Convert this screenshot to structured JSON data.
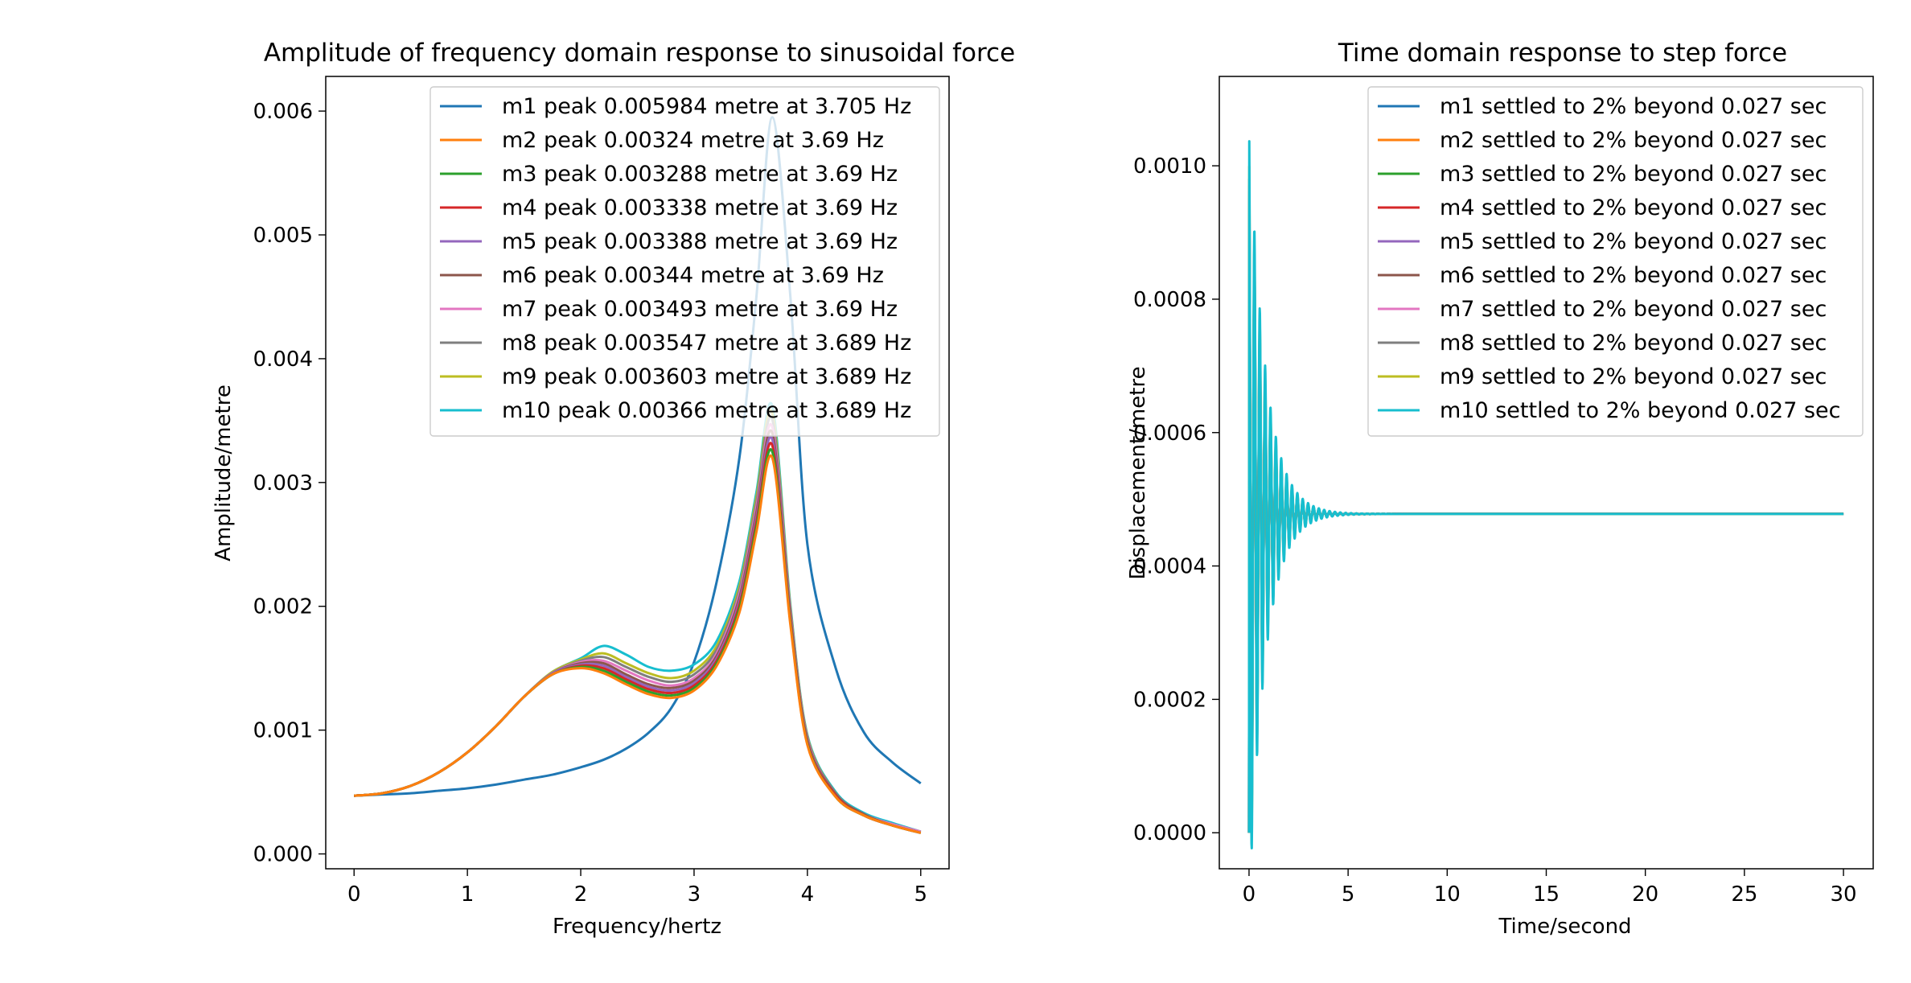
{
  "chart_data": [
    {
      "type": "line",
      "title": "Amplitude of frequency domain response to sinusoidal force",
      "xlabel": "Frequency/hertz",
      "ylabel": "Amplitude/metre",
      "xlim": [
        -0.25,
        5.25
      ],
      "ylim": [
        -0.00012,
        0.00628
      ],
      "xticks": [
        "0",
        "1",
        "2",
        "3",
        "4",
        "5"
      ],
      "yticks": [
        "0.000",
        "0.001",
        "0.002",
        "0.003",
        "0.004",
        "0.005",
        "0.006"
      ],
      "legend_position": "upper right",
      "grid": false,
      "x": [
        0,
        0.25,
        0.5,
        0.75,
        1.0,
        1.25,
        1.5,
        1.75,
        2.0,
        2.2,
        2.4,
        2.6,
        2.8,
        3.0,
        3.2,
        3.4,
        3.55,
        3.69,
        3.85,
        4.0,
        4.25,
        4.5,
        4.75,
        5.0
      ],
      "series": [
        {
          "name": "m1 peak 0.005984 metre at 3.705 Hz",
          "color": "#1f77b4",
          "values": [
            0.00047,
            0.00048,
            0.00049,
            0.00051,
            0.00053,
            0.00056,
            0.0006,
            0.00064,
            0.0007,
            0.00076,
            0.00085,
            0.00098,
            0.00118,
            0.00155,
            0.0022,
            0.0032,
            0.0045,
            0.00595,
            0.0045,
            0.0025,
            0.0015,
            0.00098,
            0.00074,
            0.00057
          ]
        },
        {
          "name": "m2 peak 0.00324 metre at 3.69 Hz",
          "color": "#ff7f0e",
          "values": [
            0.00047,
            0.00049,
            0.00055,
            0.00066,
            0.00082,
            0.00103,
            0.00127,
            0.00145,
            0.0015,
            0.00146,
            0.00137,
            0.00129,
            0.00126,
            0.00132,
            0.00152,
            0.00195,
            0.0026,
            0.0032,
            0.00185,
            0.00088,
            0.00046,
            0.00031,
            0.00023,
            0.00017
          ]
        },
        {
          "name": "m3 peak 0.003288 metre at 3.69 Hz",
          "color": "#2ca02c",
          "values": [
            0.00047,
            0.00049,
            0.00055,
            0.00066,
            0.00082,
            0.00103,
            0.00127,
            0.00145,
            0.00151,
            0.00148,
            0.00139,
            0.00131,
            0.00128,
            0.00134,
            0.00154,
            0.00198,
            0.00264,
            0.00325,
            0.00187,
            0.00089,
            0.00046,
            0.00031,
            0.00023,
            0.00017
          ]
        },
        {
          "name": "m4 peak 0.003338 metre at 3.69 Hz",
          "color": "#d62728",
          "values": [
            0.00047,
            0.00049,
            0.00055,
            0.00066,
            0.00082,
            0.00103,
            0.00127,
            0.00145,
            0.00152,
            0.0015,
            0.00141,
            0.00133,
            0.0013,
            0.00136,
            0.00156,
            0.00201,
            0.00268,
            0.0033,
            0.00189,
            0.0009,
            0.00047,
            0.00031,
            0.00023,
            0.00017
          ]
        },
        {
          "name": "m5 peak 0.003388 metre at 3.69 Hz",
          "color": "#9467bd",
          "values": [
            0.00047,
            0.00049,
            0.00055,
            0.00066,
            0.00082,
            0.00103,
            0.00127,
            0.00146,
            0.00153,
            0.00152,
            0.00143,
            0.00135,
            0.00132,
            0.00138,
            0.00158,
            0.00204,
            0.00272,
            0.00335,
            0.00191,
            0.00091,
            0.00047,
            0.00031,
            0.00023,
            0.00017
          ]
        },
        {
          "name": "m6 peak 0.00344 metre at 3.69 Hz",
          "color": "#8c564b",
          "values": [
            0.00047,
            0.00049,
            0.00055,
            0.00066,
            0.00082,
            0.00103,
            0.00127,
            0.00146,
            0.00154,
            0.00154,
            0.00145,
            0.00137,
            0.00134,
            0.0014,
            0.0016,
            0.00207,
            0.00276,
            0.0034,
            0.00193,
            0.00092,
            0.00048,
            0.00032,
            0.00023,
            0.00017
          ]
        },
        {
          "name": "m7 peak 0.003493 metre at 3.69 Hz",
          "color": "#e377c2",
          "values": [
            0.00047,
            0.00049,
            0.00055,
            0.00066,
            0.00082,
            0.00103,
            0.00127,
            0.00146,
            0.00155,
            0.00156,
            0.00148,
            0.0014,
            0.00136,
            0.00142,
            0.00162,
            0.0021,
            0.0028,
            0.00345,
            0.00195,
            0.00093,
            0.00048,
            0.00032,
            0.00024,
            0.00018
          ]
        },
        {
          "name": "m8 peak 0.003547 metre at 3.689 Hz",
          "color": "#7f7f7f",
          "values": [
            0.00047,
            0.00049,
            0.00055,
            0.00066,
            0.00082,
            0.00103,
            0.00127,
            0.00146,
            0.00156,
            0.00159,
            0.00151,
            0.00143,
            0.00139,
            0.00145,
            0.00165,
            0.00213,
            0.00284,
            0.00351,
            0.00197,
            0.00094,
            0.00049,
            0.00032,
            0.00024,
            0.00018
          ]
        },
        {
          "name": "m9 peak 0.003603 metre at 3.689 Hz",
          "color": "#bcbd22",
          "values": [
            0.00047,
            0.00049,
            0.00055,
            0.00066,
            0.00082,
            0.00103,
            0.00127,
            0.00147,
            0.00157,
            0.00162,
            0.00154,
            0.00146,
            0.00142,
            0.00148,
            0.00168,
            0.00216,
            0.00288,
            0.00356,
            0.00199,
            0.00095,
            0.00049,
            0.00032,
            0.00024,
            0.00018
          ]
        },
        {
          "name": "m10 peak 0.00366 metre at 3.689 Hz",
          "color": "#17becf",
          "values": [
            0.00047,
            0.00049,
            0.00055,
            0.00066,
            0.00082,
            0.00103,
            0.00127,
            0.00147,
            0.00158,
            0.00168,
            0.00161,
            0.00151,
            0.00148,
            0.00153,
            0.00172,
            0.0022,
            0.00292,
            0.00362,
            0.00201,
            0.00096,
            0.0005,
            0.00033,
            0.00025,
            0.00018
          ]
        }
      ]
    },
    {
      "type": "line",
      "title": "Time domain response to step force",
      "xlabel": "Time/second",
      "ylabel": "Displacement/metre",
      "xlim": [
        -1.5,
        31.5
      ],
      "ylim": [
        -5.4e-05,
        0.001134
      ],
      "xticks": [
        "0",
        "5",
        "10",
        "15",
        "20",
        "25",
        "30"
      ],
      "yticks": [
        "0.0000",
        "0.0002",
        "0.0004",
        "0.0006",
        "0.0008",
        "0.0010"
      ],
      "legend_position": "upper right",
      "grid": false,
      "final_value": 0.000478,
      "series": [
        {
          "name": "m1 settled to 2% beyond 0.027 sec",
          "color": "#1f77b4",
          "peak": 0.00092,
          "decay": 0.55,
          "freq": 3.705
        },
        {
          "name": "m2 settled to 2% beyond 0.027 sec",
          "color": "#ff7f0e",
          "peak": 0.00095,
          "decay": 0.75,
          "freq": 3.69
        },
        {
          "name": "m3 settled to 2% beyond 0.027 sec",
          "color": "#2ca02c",
          "peak": 0.00096,
          "decay": 0.76,
          "freq": 3.69
        },
        {
          "name": "m4 settled to 2% beyond 0.027 sec",
          "color": "#d62728",
          "peak": 0.00097,
          "decay": 0.77,
          "freq": 3.69
        },
        {
          "name": "m5 settled to 2% beyond 0.027 sec",
          "color": "#9467bd",
          "peak": 0.00098,
          "decay": 0.78,
          "freq": 3.69
        },
        {
          "name": "m6 settled to 2% beyond 0.027 sec",
          "color": "#8c564b",
          "peak": 0.00099,
          "decay": 0.79,
          "freq": 3.69
        },
        {
          "name": "m7 settled to 2% beyond 0.027 sec",
          "color": "#e377c2",
          "peak": 0.001,
          "decay": 0.8,
          "freq": 3.69
        },
        {
          "name": "m8 settled to 2% beyond 0.027 sec",
          "color": "#7f7f7f",
          "peak": 0.00101,
          "decay": 0.81,
          "freq": 3.689
        },
        {
          "name": "m9 settled to 2% beyond 0.027 sec",
          "color": "#bcbd22",
          "peak": 0.00103,
          "decay": 0.82,
          "freq": 3.689
        },
        {
          "name": "m10 settled to 2% beyond 0.027 sec",
          "color": "#17becf",
          "peak": 0.00107,
          "decay": 0.83,
          "freq": 3.689
        }
      ]
    }
  ]
}
